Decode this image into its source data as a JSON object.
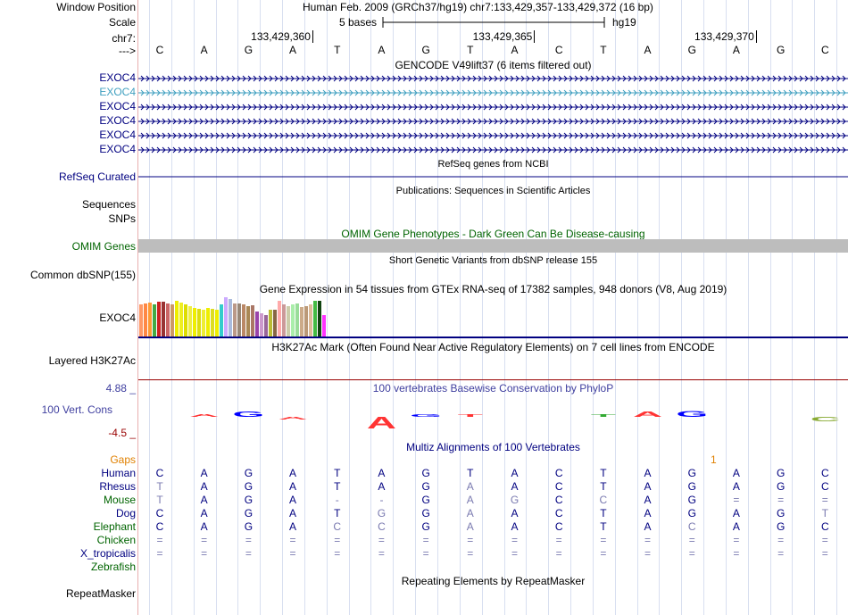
{
  "labels": {
    "window_position": "Window Position",
    "scale": "Scale",
    "chr": "chr7:",
    "arrow": "--->",
    "exoc4": [
      "EXOC4",
      "EXOC4",
      "EXOC4",
      "EXOC4",
      "EXOC4",
      "EXOC4"
    ],
    "refseq": "RefSeq Curated",
    "sequences": "Sequences",
    "snps": "SNPs",
    "omim": "OMIM Genes",
    "dbsnp": "Common dbSNP(155)",
    "gtex_gene": "EXOC4",
    "h3k27ac": "Layered H3K27Ac",
    "phylop_max": "4.88 _",
    "phylop_label": "100 Vert. Cons",
    "phylop_min": "-4.5 _",
    "gaps": "Gaps",
    "species": [
      "Human",
      "Rhesus",
      "Mouse",
      "Dog",
      "Elephant",
      "Chicken",
      "X_tropicalis",
      "Zebrafish"
    ],
    "repeatmasker": "RepeatMasker"
  },
  "colors": {
    "navy": "#000080",
    "exoc4_highlight": "#3f9fbf",
    "omim": "#006400",
    "phylop": "#3f3f9f",
    "phylop_min": "#990000",
    "gaps": "#e08000",
    "species": [
      "#000080",
      "#000080",
      "#006400",
      "#000080",
      "#006400",
      "#006400",
      "#000080",
      "#006400"
    ]
  },
  "header": {
    "position_text": "Human Feb. 2009 (GRCh37/hg19)   chr7:133,429,357-133,429,372 (16 bp)",
    "scale_text": "5 bases",
    "scale_assembly": "hg19",
    "coords": [
      "133,429,360",
      "133,429,365",
      "133,429,370"
    ]
  },
  "sequence": [
    "C",
    "A",
    "G",
    "A",
    "T",
    "A",
    "G",
    "T",
    "A",
    "C",
    "T",
    "A",
    "G",
    "A",
    "G",
    "C"
  ],
  "tracks": {
    "gencode": "GENCODE V49lift37 (6 items filtered out)",
    "refseq": "RefSeq genes from NCBI",
    "publications": "Publications: Sequences in Scientific Articles",
    "omim": "OMIM Gene Phenotypes - Dark Green Can Be Disease-causing",
    "dbsnp": "Short Genetic Variants from dbSNP release 155",
    "gtex": "Gene Expression in 54 tissues from GTEx RNA-seq of 17382 samples, 948 donors (V8, Aug 2019)",
    "h3k27ac": "H3K27Ac Mark (Often Found Near Active Regulatory Elements) on 7 cell lines from ENCODE",
    "phylop": "100 vertebrates Basewise Conservation by PhyloP",
    "multiz": "Multiz Alignments of 100 Vertebrates",
    "gaps_value": "1",
    "repeatmasker": "Repeating Elements by RepeatMasker"
  },
  "alignment": {
    "Human": [
      "C",
      "A",
      "G",
      "A",
      "T",
      "A",
      "G",
      "T",
      "A",
      "C",
      "T",
      "A",
      "G",
      "A",
      "G",
      "C"
    ],
    "Rhesus": [
      "T",
      "A",
      "G",
      "A",
      "T",
      "A",
      "G",
      "A",
      "A",
      "C",
      "T",
      "A",
      "G",
      "A",
      "G",
      "C"
    ],
    "Mouse": [
      "T",
      "A",
      "G",
      "A",
      "-",
      "-",
      "G",
      "A",
      "G",
      "C",
      "C",
      "A",
      "G",
      "=",
      "=",
      "="
    ],
    "Dog": [
      "C",
      "A",
      "G",
      "A",
      "T",
      "G",
      "G",
      "A",
      "A",
      "C",
      "T",
      "A",
      "G",
      "A",
      "G",
      "T"
    ],
    "Elephant": [
      "C",
      "A",
      "G",
      "A",
      "C",
      "C",
      "G",
      "A",
      "A",
      "C",
      "T",
      "A",
      "C",
      "A",
      "G",
      "C"
    ],
    "Chicken": [
      "=",
      "=",
      "=",
      "=",
      "=",
      "=",
      "=",
      "=",
      "=",
      "=",
      "=",
      "=",
      "=",
      "=",
      "=",
      "="
    ],
    "X_tropicalis": [
      "=",
      "=",
      "=",
      "=",
      "=",
      "=",
      "=",
      "=",
      "=",
      "=",
      "=",
      "=",
      "=",
      "=",
      "=",
      "="
    ],
    "Zebrafish": []
  },
  "alignment_gray": {
    "Rhesus": [
      0,
      7
    ],
    "Mouse": [
      0,
      4,
      5,
      7,
      8,
      10,
      13,
      14,
      15
    ],
    "Dog": [
      5,
      7,
      15
    ],
    "Elephant": [
      4,
      5,
      7,
      12
    ],
    "Chicken": [
      0,
      1,
      2,
      3,
      4,
      5,
      6,
      7,
      8,
      9,
      10,
      11,
      12,
      13,
      14,
      15
    ],
    "X_tropicalis": [
      0,
      1,
      2,
      3,
      4,
      5,
      6,
      7,
      8,
      9,
      10,
      11,
      12,
      13,
      14,
      15
    ]
  },
  "gtex_bars": {
    "colors": [
      "#ff9966",
      "#ff8844",
      "#ff9933",
      "#44aa44",
      "#cc2222",
      "#993333",
      "#cc6666",
      "#cc9966",
      "#eeee00",
      "#eeee22",
      "#dddd00",
      "#eeee44",
      "#eeee00",
      "#dddd11",
      "#eeee33",
      "#eeee00",
      "#dddd22",
      "#eeee00",
      "#33cccc",
      "#ccaaff",
      "#aabbdd",
      "#bb9988",
      "#998877",
      "#bb8866",
      "#aa8855",
      "#aa7766",
      "#9944aa",
      "#cc99cc",
      "#996699",
      "#bbbb33",
      "#886644",
      "#ffaaaa",
      "#cc9999",
      "#ccccaa",
      "#aaeeaa",
      "#99dd99",
      "#ccaa88",
      "#bb9977",
      "#ddbb99",
      "#44bb44",
      "#114411",
      "#ff33ff"
    ],
    "values": [
      36,
      37,
      38,
      36,
      39,
      39,
      37,
      36,
      40,
      38,
      36,
      34,
      32,
      31,
      30,
      32,
      31,
      30,
      36,
      44,
      42,
      37,
      37,
      36,
      34,
      35,
      28,
      26,
      24,
      30,
      30,
      40,
      36,
      34,
      36,
      37,
      33,
      34,
      36,
      40,
      40,
      24
    ]
  },
  "phylop": [
    {
      "base": 0,
      "value": 0
    },
    {
      "base": 1,
      "value": 0.3,
      "color": "#ff3333",
      "letter": "A"
    },
    {
      "base": 2,
      "value": 1.4,
      "color": "#0000ff",
      "letter": "G"
    },
    {
      "base": 3,
      "value": -0.6,
      "color": "#ff3333",
      "letter": "A"
    },
    {
      "base": 4,
      "value": 0
    },
    {
      "base": 5,
      "value": -3.2,
      "color": "#ff3333",
      "letter": "A"
    },
    {
      "base": 6,
      "value": 0.8,
      "color": "#0000ff",
      "letter": "G"
    },
    {
      "base": 7,
      "value": 0.5,
      "color": "#ff3333",
      "letter": "T"
    },
    {
      "base": 8,
      "value": 0
    },
    {
      "base": 9,
      "value": 0
    },
    {
      "base": 10,
      "value": 0.6,
      "color": "#33aa33",
      "letter": "T"
    },
    {
      "base": 11,
      "value": 1.5,
      "color": "#ff3333",
      "letter": "A"
    },
    {
      "base": 12,
      "value": 1.6,
      "color": "#0000ff",
      "letter": "G"
    },
    {
      "base": 13,
      "value": 0
    },
    {
      "base": 14,
      "value": 0
    },
    {
      "base": 15,
      "value": -1.2,
      "color": "#88aa33",
      "letter": "C"
    }
  ]
}
